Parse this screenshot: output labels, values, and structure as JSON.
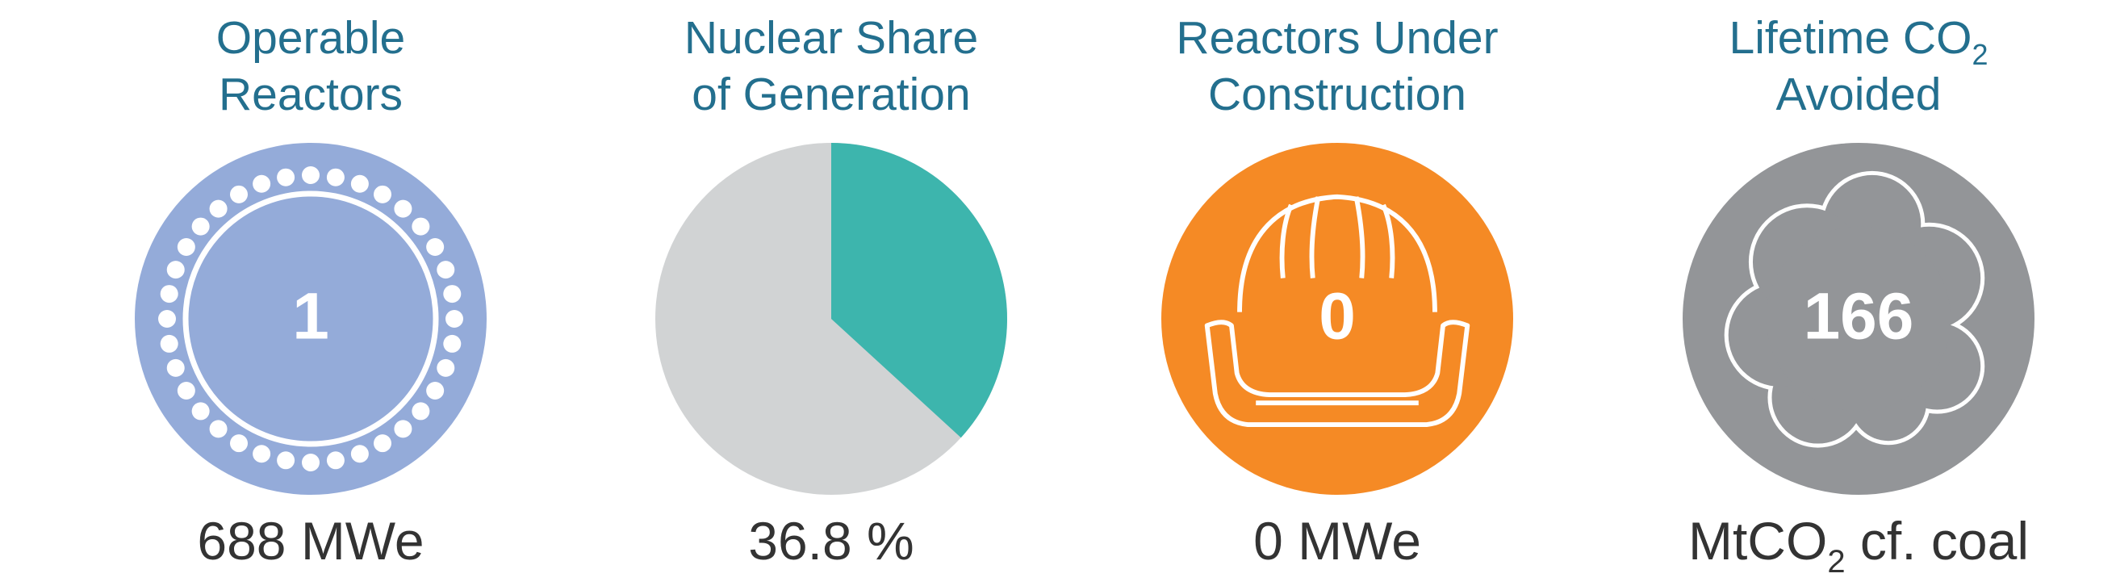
{
  "tiles": [
    {
      "title": [
        "Operable",
        "Reactors"
      ],
      "value": "1",
      "caption": "688 MWe"
    },
    {
      "title": [
        "Nuclear Share",
        "of Generation"
      ],
      "share": 36.8,
      "caption": "36.8 %"
    },
    {
      "title": [
        "Reactors Under",
        "Construction"
      ],
      "value": "0",
      "caption": "0 MWe"
    },
    {
      "title": [
        "Lifetime CO",
        "Avoided"
      ],
      "title_sub": "2",
      "value": "166",
      "caption": "MtCO",
      "caption_sub": "2",
      "caption_rest": " cf. coal"
    }
  ]
}
